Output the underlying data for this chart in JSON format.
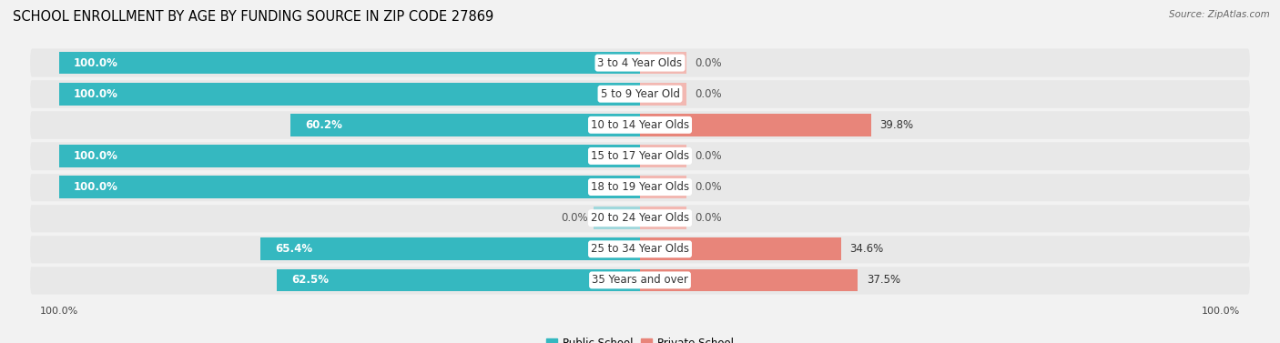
{
  "title": "SCHOOL ENROLLMENT BY AGE BY FUNDING SOURCE IN ZIP CODE 27869",
  "source": "Source: ZipAtlas.com",
  "categories": [
    "3 to 4 Year Olds",
    "5 to 9 Year Old",
    "10 to 14 Year Olds",
    "15 to 17 Year Olds",
    "18 to 19 Year Olds",
    "20 to 24 Year Olds",
    "25 to 34 Year Olds",
    "35 Years and over"
  ],
  "public_pct": [
    100.0,
    100.0,
    60.2,
    100.0,
    100.0,
    0.0,
    65.4,
    62.5
  ],
  "private_pct": [
    0.0,
    0.0,
    39.8,
    0.0,
    0.0,
    0.0,
    34.6,
    37.5
  ],
  "public_color": "#35b8c0",
  "private_color": "#e8857a",
  "public_color_light": "#a0d8dc",
  "private_color_light": "#f2b8b2",
  "bg_color": "#f2f2f2",
  "row_bg_color": "#e8e8e8",
  "title_fontsize": 10.5,
  "label_fontsize": 8.5,
  "tick_fontsize": 8,
  "legend_fontsize": 8.5,
  "source_fontsize": 7.5,
  "stub_size": 8.0
}
